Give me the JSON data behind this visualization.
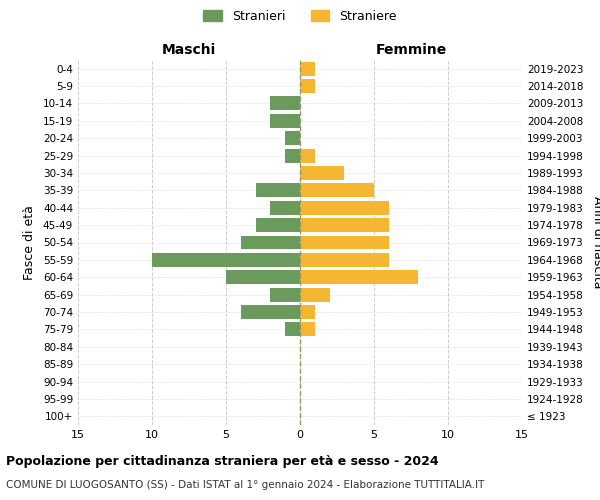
{
  "age_groups": [
    "100+",
    "95-99",
    "90-94",
    "85-89",
    "80-84",
    "75-79",
    "70-74",
    "65-69",
    "60-64",
    "55-59",
    "50-54",
    "45-49",
    "40-44",
    "35-39",
    "30-34",
    "25-29",
    "20-24",
    "15-19",
    "10-14",
    "5-9",
    "0-4"
  ],
  "birth_years": [
    "≤ 1923",
    "1924-1928",
    "1929-1933",
    "1934-1938",
    "1939-1943",
    "1944-1948",
    "1949-1953",
    "1954-1958",
    "1959-1963",
    "1964-1968",
    "1969-1973",
    "1974-1978",
    "1979-1983",
    "1984-1988",
    "1989-1993",
    "1994-1998",
    "1999-2003",
    "2004-2008",
    "2009-2013",
    "2014-2018",
    "2019-2023"
  ],
  "males": [
    0,
    0,
    0,
    0,
    0,
    1,
    4,
    2,
    5,
    10,
    4,
    3,
    2,
    3,
    0,
    1,
    1,
    2,
    2,
    0,
    0
  ],
  "females": [
    0,
    0,
    0,
    0,
    0,
    1,
    1,
    2,
    8,
    6,
    6,
    6,
    6,
    5,
    3,
    1,
    0,
    0,
    0,
    1,
    1
  ],
  "male_color": "#6a9a5c",
  "female_color": "#f5b731",
  "background_color": "#ffffff",
  "grid_color": "#cccccc",
  "xlim": 15,
  "title": "Popolazione per cittadinanza straniera per età e sesso - 2024",
  "subtitle": "COMUNE DI LUOGOSANTO (SS) - Dati ISTAT al 1° gennaio 2024 - Elaborazione TUTTITALIA.IT",
  "xlabel_left": "Maschi",
  "xlabel_right": "Femmine",
  "ylabel_left": "Fasce di età",
  "ylabel_right": "Anni di nascita",
  "legend_stranieri": "Stranieri",
  "legend_straniere": "Straniere",
  "bar_height": 0.8
}
